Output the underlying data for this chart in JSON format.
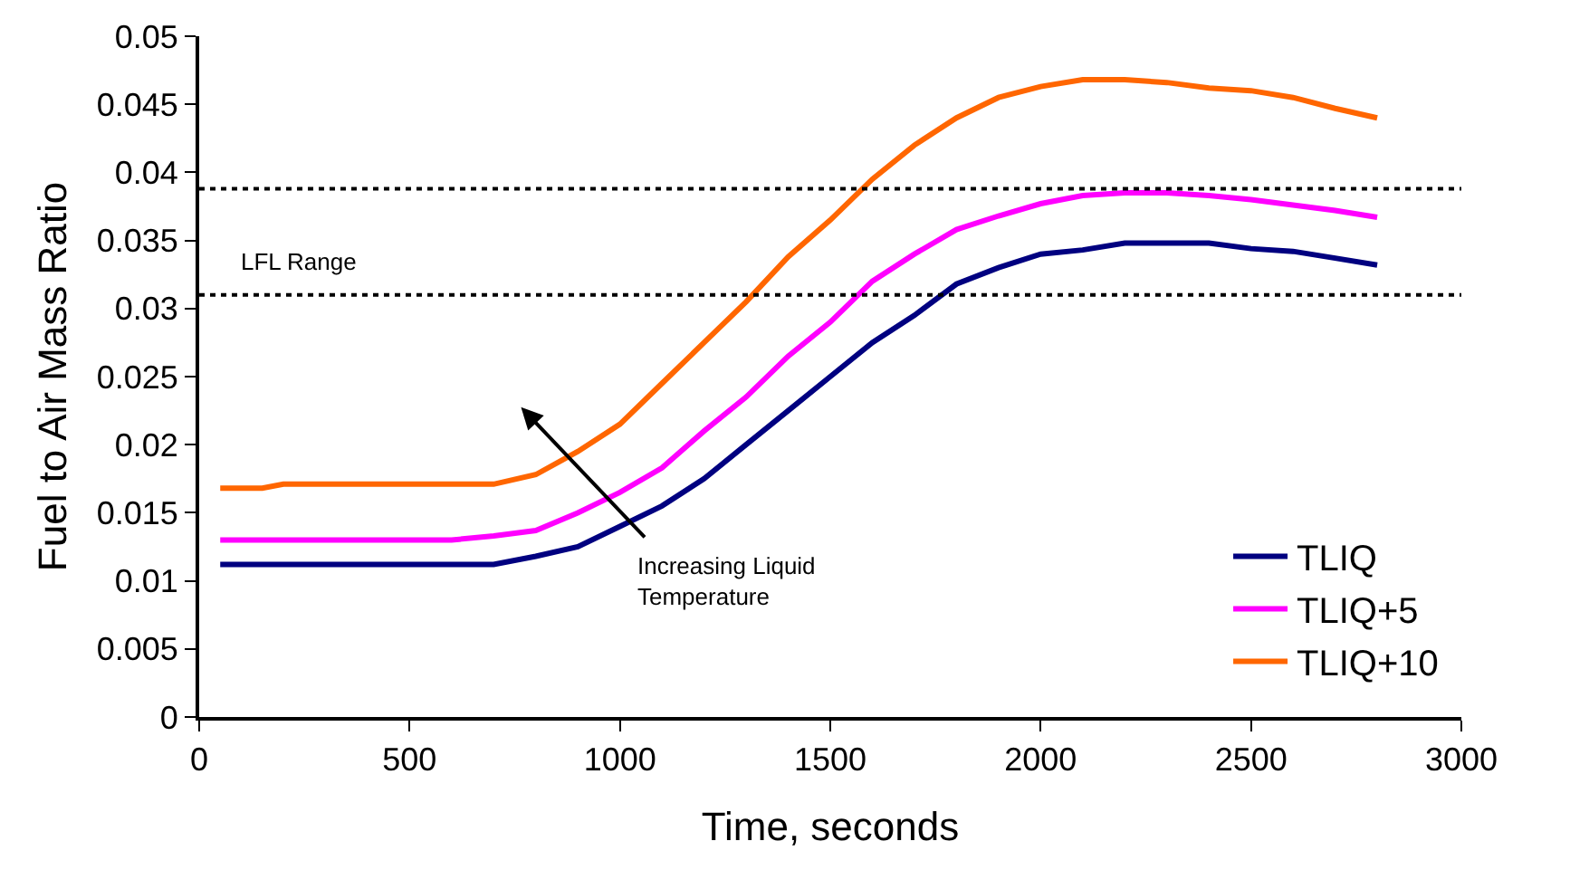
{
  "chart_data": {
    "type": "line",
    "xlabel": "Time, seconds",
    "ylabel": "Fuel to Air Mass Ratio",
    "x": [
      50,
      150,
      200,
      300,
      400,
      500,
      600,
      700,
      800,
      900,
      1000,
      1100,
      1200,
      1300,
      1400,
      1500,
      1600,
      1700,
      1800,
      1900,
      2000,
      2100,
      2200,
      2300,
      2400,
      2500,
      2600,
      2700,
      2800
    ],
    "series": [
      {
        "name": "TLIQ",
        "color": "#000080",
        "values": [
          0.0112,
          0.0112,
          0.0112,
          0.0112,
          0.0112,
          0.0112,
          0.0112,
          0.0112,
          0.0118,
          0.0125,
          0.014,
          0.0155,
          0.0175,
          0.02,
          0.0225,
          0.025,
          0.0275,
          0.0295,
          0.0318,
          0.033,
          0.034,
          0.0343,
          0.0348,
          0.0348,
          0.0348,
          0.0344,
          0.0342,
          0.0337,
          0.0332
        ]
      },
      {
        "name": "TLIQ+5",
        "color": "#ff00ff",
        "values": [
          0.013,
          0.013,
          0.013,
          0.013,
          0.013,
          0.013,
          0.013,
          0.0133,
          0.0137,
          0.015,
          0.0165,
          0.0183,
          0.021,
          0.0235,
          0.0265,
          0.029,
          0.032,
          0.034,
          0.0358,
          0.0368,
          0.0377,
          0.0383,
          0.0385,
          0.0385,
          0.0383,
          0.038,
          0.0376,
          0.0372,
          0.0367
        ]
      },
      {
        "name": "TLIQ+10",
        "color": "#ff6600",
        "values": [
          0.0168,
          0.0168,
          0.0171,
          0.0171,
          0.0171,
          0.0171,
          0.0171,
          0.0171,
          0.0178,
          0.0195,
          0.0215,
          0.0245,
          0.0275,
          0.0305,
          0.0338,
          0.0365,
          0.0395,
          0.042,
          0.044,
          0.0455,
          0.0463,
          0.0468,
          0.0468,
          0.0466,
          0.0462,
          0.046,
          0.0455,
          0.0447,
          0.044
        ]
      }
    ],
    "xlim": [
      0,
      3000
    ],
    "xticks": [
      0,
      500,
      1000,
      1500,
      2000,
      2500,
      3000
    ],
    "ylim": [
      0,
      0.05
    ],
    "yticks": [
      0,
      0.005,
      0.01,
      0.015,
      0.02,
      0.025,
      0.03,
      0.035,
      0.04,
      0.045,
      0.05
    ],
    "ref_lines": [
      {
        "axis": "y",
        "value": 0.0388,
        "color": "#000000",
        "line_style": "dotted"
      },
      {
        "axis": "y",
        "value": 0.031,
        "color": "#000000",
        "line_style": "dotted"
      }
    ],
    "annotations": [
      "LFL Range",
      "Increasing Liquid Temperature"
    ],
    "grid": false,
    "legend": "bottom right",
    "marker": "none",
    "line_style": "solid"
  }
}
